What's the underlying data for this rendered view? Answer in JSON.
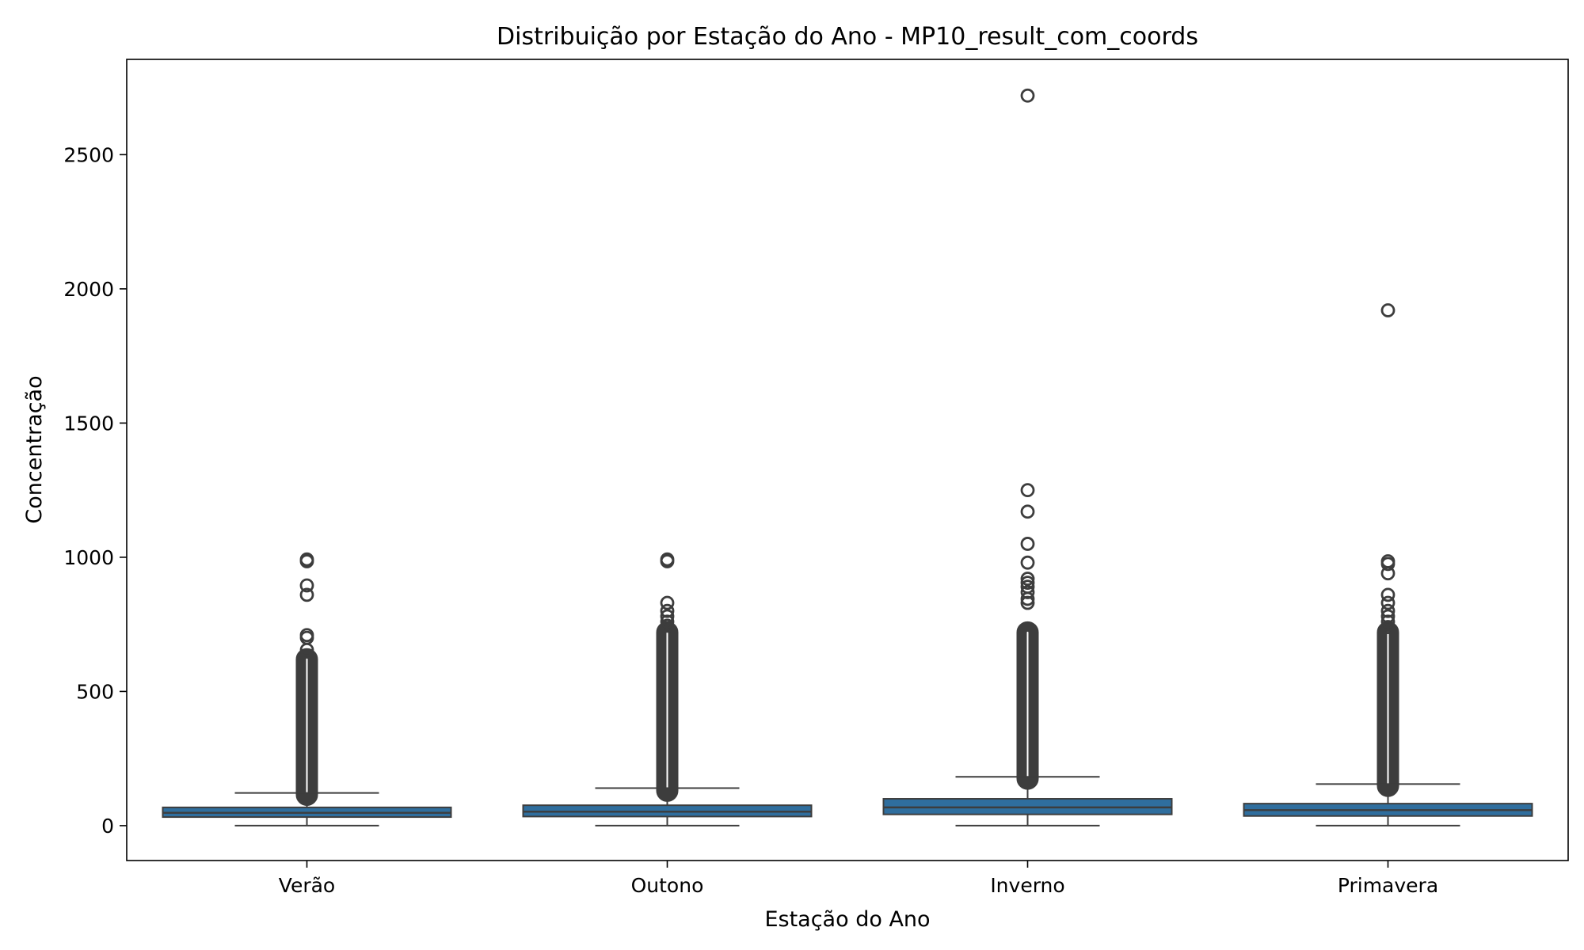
{
  "chart_data": {
    "type": "box",
    "title": "Distribuição por Estação do Ano - MP10_result_com_coords",
    "xlabel": "Estação do Ano",
    "ylabel": "Concentração",
    "ylim": [
      -130,
      2855
    ],
    "yticks": [
      0,
      500,
      1000,
      1500,
      2000,
      2500
    ],
    "grid": false,
    "legend": "none",
    "box_color": "#2f6e9e",
    "line_color": "#3d3d3d",
    "categories": [
      "Verão",
      "Outono",
      "Inverno",
      "Primavera"
    ],
    "boxes": [
      {
        "category": "Verão",
        "whisker_low": 0,
        "q1": 32,
        "median": 48,
        "q3": 68,
        "whisker_high": 122,
        "outlier_band": [
          115,
          620
        ],
        "outliers": [
          655,
          700,
          710,
          860,
          895,
          985,
          992
        ]
      },
      {
        "category": "Outono",
        "whisker_low": 0,
        "q1": 34,
        "median": 52,
        "q3": 76,
        "whisker_high": 140,
        "outlier_band": [
          130,
          720
        ],
        "outliers": [
          745,
          760,
          780,
          800,
          830,
          985,
          992
        ]
      },
      {
        "category": "Inverno",
        "whisker_low": 0,
        "q1": 42,
        "median": 68,
        "q3": 100,
        "whisker_high": 182,
        "outlier_band": [
          175,
          720
        ],
        "outliers": [
          830,
          845,
          870,
          890,
          905,
          920,
          980,
          1050,
          1170,
          1250,
          2720
        ]
      },
      {
        "category": "Primavera",
        "whisker_low": 0,
        "q1": 36,
        "median": 58,
        "q3": 82,
        "whisker_high": 155,
        "outlier_band": [
          148,
          720
        ],
        "outliers": [
          740,
          760,
          780,
          800,
          830,
          860,
          940,
          975,
          985,
          1920
        ]
      }
    ]
  }
}
